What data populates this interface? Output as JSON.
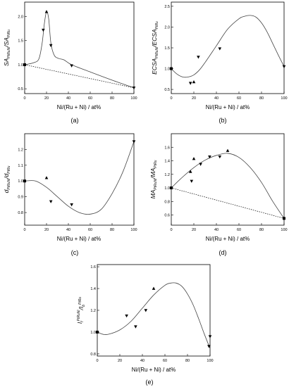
{
  "chart_data": [
    {
      "type": "line",
      "panel_label": "(a)",
      "xlabel": "Ni/(Ru + Ni) / at%",
      "ylabel_parts": [
        {
          "t": "SA",
          "sub": false
        },
        {
          "t": "PtRuNi",
          "sub": true
        },
        {
          "t": "/SA",
          "sub": false
        },
        {
          "t": "PtRu",
          "sub": true
        }
      ],
      "xlim": [
        0,
        100
      ],
      "ylim": [
        0.4,
        2.3
      ],
      "xticks": [
        0,
        20,
        40,
        60,
        80,
        100
      ],
      "yticks": [
        0.5,
        1.0,
        1.5,
        2.0
      ],
      "ytick_labels": [
        "0.5",
        "1.0",
        "1.5",
        "2.0"
      ],
      "grid": false,
      "points": {
        "x": [
          0,
          17,
          20,
          24,
          43,
          100
        ],
        "y": [
          1.0,
          1.72,
          2.1,
          1.4,
          0.98,
          0.52
        ],
        "markers": [
          "square",
          "triangle-down",
          "triangle-up",
          "triangle-down",
          "triangle-down",
          "triangle-down"
        ]
      },
      "fit_curve": {
        "x": [
          0,
          8,
          13,
          16,
          18,
          20,
          22,
          24,
          27,
          31,
          36,
          43,
          60,
          80,
          100
        ],
        "y": [
          1.0,
          1.04,
          1.12,
          1.45,
          1.85,
          2.1,
          1.95,
          1.45,
          1.2,
          1.13,
          1.1,
          1.0,
          0.85,
          0.68,
          0.52
        ]
      },
      "reference_line": {
        "x": [
          0,
          100
        ],
        "y": [
          1.0,
          0.52
        ]
      }
    },
    {
      "type": "line",
      "panel_label": "(b)",
      "xlabel": "Ni/(Ru + Ni) / at%",
      "ylabel_parts": [
        {
          "t": "ECSA",
          "sub": false
        },
        {
          "t": "PtRuNi",
          "sub": true
        },
        {
          "t": "/ECSA",
          "sub": false
        },
        {
          "t": "PtRu",
          "sub": true
        }
      ],
      "xlim": [
        0,
        100
      ],
      "ylim": [
        0.4,
        2.6
      ],
      "xticks": [
        0,
        20,
        40,
        60,
        80,
        100
      ],
      "yticks": [
        0.5,
        1.0,
        1.5,
        2.0,
        2.5
      ],
      "ytick_labels": [
        "0.5",
        "1.0",
        "1.5",
        "2.0",
        "2.5"
      ],
      "grid": false,
      "points": {
        "x": [
          0,
          17,
          20,
          24,
          43,
          100
        ],
        "y": [
          1.0,
          0.65,
          0.68,
          1.28,
          1.48,
          1.05
        ],
        "markers": [
          "square",
          "triangle-down",
          "triangle-up",
          "triangle-down",
          "triangle-down",
          "triangle-down"
        ]
      },
      "fit_curve": {
        "x": [
          0,
          5,
          10,
          15,
          20,
          25,
          30,
          40,
          50,
          60,
          65,
          70,
          75,
          80,
          85,
          90,
          95,
          100
        ],
        "y": [
          1.0,
          0.87,
          0.8,
          0.8,
          0.85,
          0.97,
          1.15,
          1.55,
          1.95,
          2.2,
          2.26,
          2.28,
          2.24,
          2.1,
          1.88,
          1.6,
          1.32,
          1.05
        ]
      }
    },
    {
      "type": "line",
      "panel_label": "(c)",
      "xlabel": "Ni/(Ru + Ni) / at%",
      "ylabel_parts": [
        {
          "t": "d",
          "sub": false
        },
        {
          "t": "PtRuNi",
          "sub": true
        },
        {
          "t": "/d",
          "sub": false
        },
        {
          "t": "PtRu",
          "sub": true
        }
      ],
      "xlim": [
        0,
        100
      ],
      "ylim": [
        0.72,
        1.3
      ],
      "xticks": [
        0,
        20,
        40,
        60,
        80,
        100
      ],
      "yticks": [
        0.8,
        0.9,
        1.0,
        1.1,
        1.2
      ],
      "ytick_labels": [
        "0.8",
        "0.9",
        "1.0",
        "1.1",
        "1.2"
      ],
      "grid": false,
      "points": {
        "x": [
          0,
          20,
          24,
          43,
          100
        ],
        "y": [
          1.0,
          1.02,
          0.87,
          0.85,
          1.25
        ],
        "markers": [
          "square",
          "triangle-up",
          "triangle-down",
          "triangle-down",
          "triangle-down"
        ]
      },
      "fit_curve": {
        "x": [
          0,
          10,
          20,
          30,
          40,
          50,
          60,
          70,
          80,
          90,
          100
        ],
        "y": [
          1.0,
          1.0,
          0.96,
          0.9,
          0.84,
          0.8,
          0.79,
          0.82,
          0.92,
          1.06,
          1.25
        ]
      }
    },
    {
      "type": "line",
      "panel_label": "(d)",
      "xlabel": "Ni/(Ru + Ni) / at%",
      "ylabel_parts": [
        {
          "t": "MA",
          "sub": false
        },
        {
          "t": "PtRuNi",
          "sub": true
        },
        {
          "t": "/MA",
          "sub": false
        },
        {
          "t": "PtRu",
          "sub": true
        }
      ],
      "xlim": [
        0,
        100
      ],
      "ylim": [
        0.45,
        1.8
      ],
      "xticks": [
        0,
        20,
        40,
        60,
        80,
        100
      ],
      "yticks": [
        0.6,
        0.8,
        1.0,
        1.2,
        1.4,
        1.6
      ],
      "ytick_labels": [
        "0.6",
        "0.8",
        "1.0",
        "1.2",
        "1.4",
        "1.6"
      ],
      "grid": false,
      "points": {
        "x": [
          0,
          17,
          18,
          20,
          26,
          34,
          43,
          50,
          100
        ],
        "y": [
          1.0,
          1.24,
          1.1,
          1.43,
          1.35,
          1.46,
          1.46,
          1.55,
          0.55
        ],
        "markers": [
          "square",
          "triangle-up",
          "triangle-down",
          "triangle-up",
          "triangle-down",
          "triangle-down",
          "triangle-down",
          "triangle-up",
          "square"
        ]
      },
      "fit_curve": {
        "x": [
          0,
          10,
          20,
          30,
          40,
          50,
          60,
          70,
          80,
          90,
          100
        ],
        "y": [
          1.0,
          1.16,
          1.3,
          1.41,
          1.48,
          1.51,
          1.45,
          1.3,
          1.08,
          0.8,
          0.55
        ]
      },
      "reference_line": {
        "x": [
          0,
          100
        ],
        "y": [
          1.0,
          0.55
        ]
      }
    },
    {
      "type": "line",
      "panel_label": "(e)",
      "xlabel": "Ni/(Ru + Ni) / at%",
      "ylabel_parts": [
        {
          "t": "I",
          "sub": false
        },
        {
          "t": "f",
          "sub": true
        },
        {
          "t": "PtRuNi",
          "sup": true
        },
        {
          "t": "/I",
          "sub": false
        },
        {
          "t": "b",
          "sub": true
        },
        {
          "t": "PtRu",
          "sup": true
        }
      ],
      "xlim": [
        0,
        100
      ],
      "ylim": [
        0.78,
        1.62
      ],
      "xticks": [
        0,
        20,
        40,
        60,
        80,
        100
      ],
      "yticks": [
        0.8,
        1.0,
        1.2,
        1.4,
        1.6
      ],
      "ytick_labels": [
        "0.8",
        "1.0",
        "1.2",
        "1.4",
        "1.6"
      ],
      "grid": false,
      "points": {
        "x": [
          0,
          26,
          34,
          43,
          50,
          99,
          100
        ],
        "y": [
          1.0,
          1.15,
          1.05,
          1.2,
          1.4,
          0.87,
          0.96
        ],
        "markers": [
          "square",
          "triangle-down",
          "triangle-down",
          "triangle-down",
          "triangle-up",
          "triangle-down",
          "triangle-down"
        ]
      },
      "fit_curve": {
        "x": [
          0,
          5,
          10,
          20,
          30,
          40,
          50,
          60,
          65,
          70,
          75,
          80,
          85,
          90,
          95,
          100
        ],
        "y": [
          1.0,
          0.98,
          0.98,
          1.02,
          1.1,
          1.22,
          1.34,
          1.43,
          1.45,
          1.45,
          1.42,
          1.35,
          1.25,
          1.12,
          0.98,
          0.85
        ]
      }
    }
  ]
}
